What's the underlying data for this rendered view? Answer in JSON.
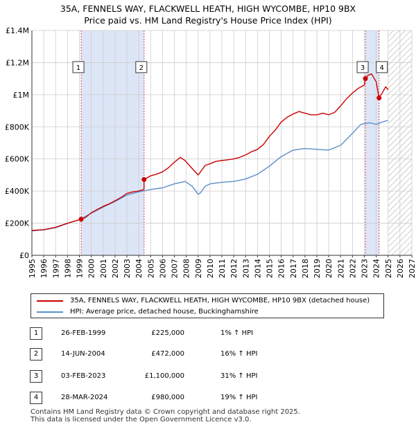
{
  "title_line1": "35A, FENNELS WAY, FLACKWELL HEATH, HIGH WYCOMBE, HP10 9BX",
  "title_line2": "Price paid vs. HM Land Registry's House Price Index (HPI)",
  "colors": {
    "price_line": "#cc0000",
    "hpi_line": "#5b8ec9",
    "shade": "#dde6f7",
    "grid": "#cccccc"
  },
  "chart_data": {
    "type": "line",
    "title": "35A, FENNELS WAY, FLACKWELL HEATH, HIGH WYCOMBE, HP10 9BX — Price paid vs. HM Land Registry's House Price Index (HPI)",
    "xlim": [
      1995,
      2027
    ],
    "ylim": [
      0,
      1400000
    ],
    "x_ticks": [
      "1995",
      "1996",
      "1997",
      "1998",
      "1999",
      "2000",
      "2001",
      "2002",
      "2003",
      "2004",
      "2005",
      "2006",
      "2007",
      "2008",
      "2009",
      "2010",
      "2011",
      "2012",
      "2013",
      "2014",
      "2015",
      "2016",
      "2017",
      "2018",
      "2019",
      "2020",
      "2021",
      "2022",
      "2023",
      "2024",
      "2025",
      "2026",
      "2027"
    ],
    "y_ticks": [
      {
        "value": 0,
        "label": "£0"
      },
      {
        "value": 200000,
        "label": "£200K"
      },
      {
        "value": 400000,
        "label": "£400K"
      },
      {
        "value": 600000,
        "label": "£600K"
      },
      {
        "value": 800000,
        "label": "£800K"
      },
      {
        "value": 1000000,
        "label": "£1M"
      },
      {
        "value": 1200000,
        "label": "£1.2M"
      },
      {
        "value": 1400000,
        "label": "£1.4M"
      }
    ],
    "shaded_ranges": [
      [
        1999.15,
        2004.45
      ],
      [
        2023.09,
        2024.24
      ]
    ],
    "future_hatch_from": 2025.0,
    "series": [
      {
        "name": "35A, FENNELS WAY, FLACKWELL HEATH, HIGH WYCOMBE, HP10 9BX (detached house)",
        "x": [
          1995.0,
          1996.0,
          1997.0,
          1998.0,
          1999.15,
          1999.5,
          2000.0,
          2000.5,
          2001.0,
          2001.5,
          2002.0,
          2002.5,
          2003.0,
          2003.5,
          2004.0,
          2004.44,
          2004.45,
          2005.0,
          2005.5,
          2006.0,
          2006.5,
          2007.0,
          2007.5,
          2007.9,
          2008.5,
          2009.0,
          2009.2,
          2009.6,
          2010.0,
          2010.5,
          2011.0,
          2011.5,
          2012.0,
          2012.5,
          2013.0,
          2013.5,
          2014.0,
          2014.5,
          2015.0,
          2015.5,
          2016.0,
          2016.5,
          2017.0,
          2017.5,
          2018.0,
          2018.5,
          2019.0,
          2019.5,
          2020.0,
          2020.5,
          2021.0,
          2021.5,
          2022.0,
          2022.5,
          2023.0,
          2023.09,
          2023.3,
          2023.6,
          2024.0,
          2024.24,
          2024.5,
          2024.8,
          2025.0
        ],
        "values": [
          155000,
          160000,
          175000,
          200000,
          225000,
          235000,
          265000,
          285000,
          305000,
          320000,
          340000,
          360000,
          385000,
          395000,
          400000,
          410000,
          472000,
          495000,
          505000,
          520000,
          545000,
          580000,
          610000,
          590000,
          540000,
          500000,
          520000,
          560000,
          570000,
          585000,
          590000,
          595000,
          600000,
          610000,
          625000,
          645000,
          660000,
          690000,
          740000,
          780000,
          830000,
          860000,
          880000,
          895000,
          885000,
          875000,
          875000,
          885000,
          875000,
          890000,
          930000,
          975000,
          1010000,
          1040000,
          1060000,
          1100000,
          1120000,
          1130000,
          1080000,
          980000,
          1010000,
          1050000,
          1030000
        ]
      },
      {
        "name": "HPI: Average price, detached house, Buckinghamshire",
        "x": [
          1995.0,
          1996.0,
          1997.0,
          1998.0,
          1999.0,
          2000.0,
          2001.0,
          2002.0,
          2003.0,
          2004.0,
          2005.0,
          2006.0,
          2007.0,
          2007.9,
          2008.5,
          2009.0,
          2009.2,
          2009.6,
          2010.0,
          2011.0,
          2012.0,
          2013.0,
          2014.0,
          2015.0,
          2016.0,
          2017.0,
          2018.0,
          2019.0,
          2020.0,
          2021.0,
          2022.0,
          2022.7,
          2023.0,
          2023.5,
          2024.0,
          2024.5,
          2025.0
        ],
        "values": [
          152000,
          158000,
          172000,
          198000,
          222000,
          262000,
          300000,
          335000,
          375000,
          395000,
          410000,
          420000,
          445000,
          460000,
          430000,
          380000,
          390000,
          430000,
          445000,
          455000,
          460000,
          475000,
          505000,
          555000,
          615000,
          655000,
          665000,
          660000,
          655000,
          685000,
          760000,
          815000,
          820000,
          825000,
          815000,
          830000,
          840000
        ]
      }
    ],
    "markers": [
      {
        "label": "1",
        "x": 1999.15,
        "value": 225000
      },
      {
        "label": "2",
        "x": 2004.45,
        "value": 472000
      },
      {
        "label": "3",
        "x": 2023.09,
        "value": 1100000
      },
      {
        "label": "4",
        "x": 2024.24,
        "value": 980000
      }
    ]
  },
  "legend": {
    "price_label": "35A, FENNELS WAY, FLACKWELL HEATH, HIGH WYCOMBE, HP10 9BX (detached house)",
    "hpi_label": "HPI: Average price, detached house, Buckinghamshire"
  },
  "sales": [
    {
      "num": "1",
      "date": "26-FEB-1999",
      "price": "£225,000",
      "hpi": "1% ↑ HPI"
    },
    {
      "num": "2",
      "date": "14-JUN-2004",
      "price": "£472,000",
      "hpi": "16% ↑ HPI"
    },
    {
      "num": "3",
      "date": "03-FEB-2023",
      "price": "£1,100,000",
      "hpi": "31% ↑ HPI"
    },
    {
      "num": "4",
      "date": "28-MAR-2024",
      "price": "£980,000",
      "hpi": "19% ↑ HPI"
    }
  ],
  "footer_line1": "Contains HM Land Registry data © Crown copyright and database right 2025.",
  "footer_line2": "This data is licensed under the Open Government Licence v3.0."
}
